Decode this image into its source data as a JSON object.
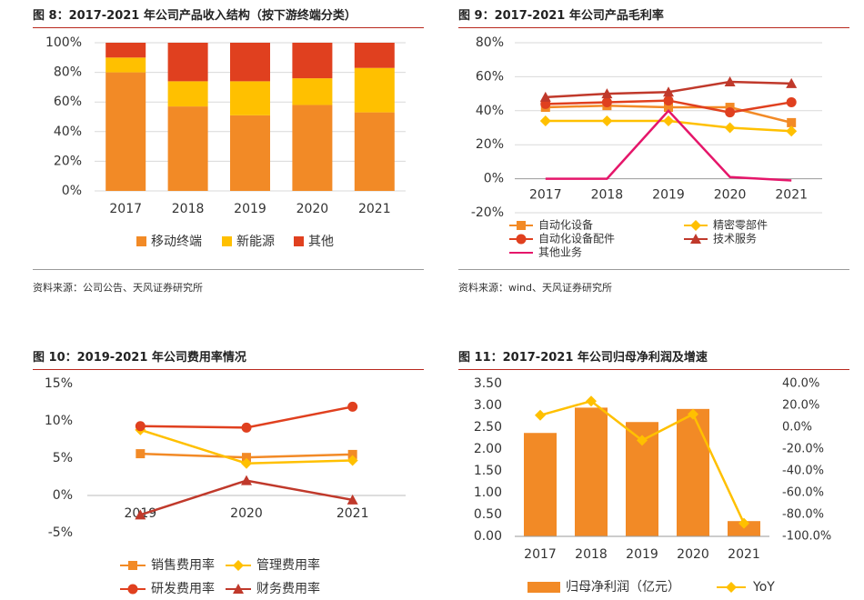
{
  "colors": {
    "orange": "#f28a26",
    "yellow": "#ffc000",
    "red": "#e0401f",
    "darkred": "#c0392b",
    "pink": "#e5166a",
    "title_rule": "#b8281e"
  },
  "panels": {
    "fig8": {
      "title": "图 8：2017-2021 年公司产品收入结构（按下游终端分类）",
      "source": "资料来源：公司公告、天风证券研究所"
    },
    "fig9": {
      "title": "图 9：2017-2021 年公司产品毛利率",
      "source": "资料来源：wind、天风证券研究所"
    },
    "fig10": {
      "title": "图 10：2019-2021 年公司费用率情况"
    },
    "fig11": {
      "title": "图 11：2017-2021 年公司归母净利润及增速"
    }
  },
  "chart_data": [
    {
      "id": "fig8",
      "type": "bar",
      "stacked": true,
      "categories": [
        "2017",
        "2018",
        "2019",
        "2020",
        "2021"
      ],
      "series": [
        {
          "name": "移动终端",
          "values": [
            80,
            57,
            51,
            58,
            53
          ]
        },
        {
          "name": "新能源",
          "values": [
            10,
            17,
            23,
            18,
            30
          ]
        },
        {
          "name": "其他",
          "values": [
            10,
            26,
            26,
            24,
            17
          ]
        }
      ],
      "ylim": [
        0,
        100
      ],
      "yticks": [
        "0%",
        "20%",
        "40%",
        "60%",
        "80%",
        "100%"
      ],
      "grid": true,
      "legend": "bottom"
    },
    {
      "id": "fig9",
      "type": "line",
      "categories": [
        "2017",
        "2018",
        "2019",
        "2020",
        "2021"
      ],
      "series": [
        {
          "name": "自动化设备",
          "marker": "square",
          "values": [
            42,
            43,
            42,
            42,
            33
          ]
        },
        {
          "name": "精密零部件",
          "marker": "diamond",
          "values": [
            34,
            34,
            34,
            30,
            28
          ]
        },
        {
          "name": "自动化设备配件",
          "marker": "circle",
          "values": [
            44,
            45,
            46,
            39,
            45
          ]
        },
        {
          "name": "技术服务",
          "marker": "triangle",
          "values": [
            48,
            50,
            51,
            57,
            56
          ]
        },
        {
          "name": "其他业务",
          "marker": "line",
          "values": [
            0,
            0,
            40,
            1,
            -1
          ]
        }
      ],
      "ylim": [
        -20,
        80
      ],
      "yticks": [
        "-20%",
        "0%",
        "20%",
        "40%",
        "60%",
        "80%"
      ],
      "grid": true,
      "legend": "bottom"
    },
    {
      "id": "fig10",
      "type": "line",
      "categories": [
        "2019",
        "2020",
        "2021"
      ],
      "series": [
        {
          "name": "销售费用率",
          "marker": "square",
          "values": [
            5.6,
            5.1,
            5.5
          ]
        },
        {
          "name": "管理费用率",
          "marker": "diamond",
          "values": [
            8.8,
            4.3,
            4.7
          ]
        },
        {
          "name": "研发费用率",
          "marker": "circle",
          "values": [
            9.3,
            9.1,
            11.9
          ]
        },
        {
          "name": "财务费用率",
          "marker": "triangle",
          "values": [
            -2.6,
            2.0,
            -0.6
          ]
        }
      ],
      "ylim": [
        -5,
        15
      ],
      "yticks": [
        "-5%",
        "0%",
        "5%",
        "10%",
        "15%"
      ],
      "grid": false,
      "legend": "bottom"
    },
    {
      "id": "fig11",
      "type": "bar+line",
      "categories": [
        "2017",
        "2018",
        "2019",
        "2020",
        "2021"
      ],
      "bar_series": {
        "name": "归母净利润（亿元）",
        "values": [
          2.37,
          2.95,
          2.62,
          2.92,
          0.35
        ]
      },
      "line_series": {
        "name": "YoY",
        "values": [
          11,
          24,
          -12,
          12,
          -88
        ]
      },
      "ylim_left": [
        0,
        3.5
      ],
      "ylim_right": [
        -100,
        40
      ],
      "yticks_left": [
        "0.00",
        "0.50",
        "1.00",
        "1.50",
        "2.00",
        "2.50",
        "3.00",
        "3.50"
      ],
      "yticks_right": [
        "-100.0%",
        "-80.0%",
        "-60.0%",
        "-40.0%",
        "-20.0%",
        "0.0%",
        "20.0%",
        "40.0%"
      ],
      "grid": false,
      "legend": "bottom"
    }
  ]
}
